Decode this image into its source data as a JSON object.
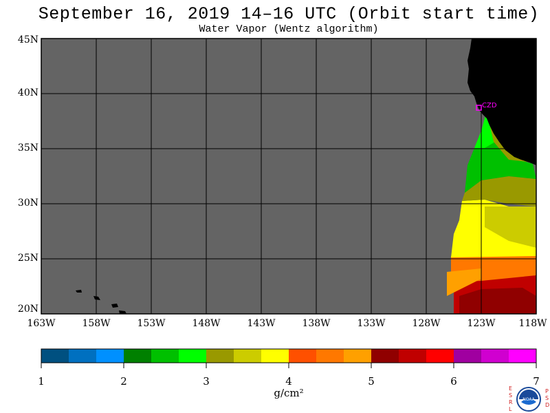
{
  "header": {
    "title": "September 16, 2019  14–16 UTC  (Orbit start time)",
    "subtitle": "Water Vapor (Wentz algorithm)"
  },
  "map": {
    "projection": "lat-lon",
    "lat_range": [
      "20N",
      "45N"
    ],
    "lon_range": [
      "163W",
      "118W"
    ],
    "lat_labels": [
      "45N",
      "40N",
      "35N",
      "30N",
      "25N",
      "20N"
    ],
    "lon_labels": [
      "163W",
      "158W",
      "153W",
      "148W",
      "143W",
      "138W",
      "133W",
      "128W",
      "123W",
      "118W"
    ],
    "station_label": "CZD",
    "colors": {
      "no_data": "#646464",
      "land": "#000000",
      "grid": "#000000",
      "station": "#ff00ff"
    },
    "field_bands": [
      {
        "value_range": [
          2.0,
          3.0
        ],
        "region": "33N-38N along coast",
        "color": "#00e000"
      },
      {
        "value_range": [
          3.0,
          3.5
        ],
        "region": "30N-33N",
        "color": "#999900"
      },
      {
        "value_range": [
          3.5,
          4.0
        ],
        "region": "25N-30N",
        "color": "#ffff00"
      },
      {
        "value_range": [
          4.0,
          5.0
        ],
        "region": "22N-25N",
        "color": "#ff8000"
      },
      {
        "value_range": [
          5.0,
          6.0
        ],
        "region": "20N-22N",
        "color": "#c00000"
      }
    ]
  },
  "colorbar": {
    "units": "g/cm²",
    "tick_labels": [
      "1",
      "2",
      "3",
      "4",
      "5",
      "6",
      "7"
    ],
    "range": [
      1,
      7
    ],
    "colors": [
      "#005080",
      "#0070c0",
      "#0090ff",
      "#008000",
      "#00c000",
      "#00ff00",
      "#999900",
      "#cccc00",
      "#ffff00",
      "#ff5000",
      "#ff7800",
      "#ffa000",
      "#900000",
      "#c00000",
      "#ff0000",
      "#a000a0",
      "#d000d0",
      "#ff00ff"
    ]
  },
  "logo": {
    "left_letters": [
      "E",
      "S",
      "R",
      "L"
    ],
    "right_letters": [
      "P",
      "S",
      "D"
    ],
    "emblem_text": "NOAA"
  }
}
